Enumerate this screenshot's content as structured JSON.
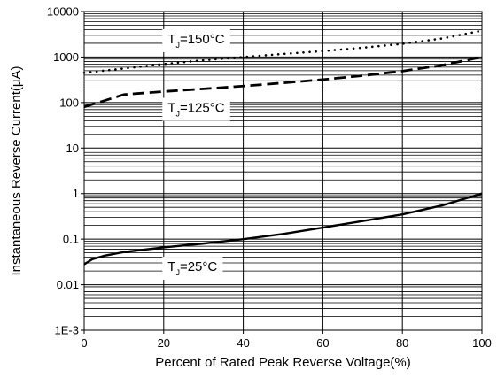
{
  "chart_data": {
    "type": "line",
    "xlabel": "Percent of Rated Peak Reverse Voltage(%)",
    "ylabel": "Instantaneous Reverse Current(μA)",
    "xlim": [
      0,
      100
    ],
    "ylim": [
      0.001,
      10000
    ],
    "yscale": "log",
    "x_ticks": [
      0,
      20,
      40,
      60,
      80,
      100
    ],
    "x_tick_labels": [
      "0",
      "20",
      "40",
      "60",
      "80",
      "100"
    ],
    "y_ticks": [
      0.001,
      0.01,
      0.1,
      1,
      10,
      100,
      1000,
      10000
    ],
    "y_tick_labels": [
      "1E-3",
      "0.01",
      "0.1",
      "1",
      "10",
      "100",
      "1000",
      "10000"
    ],
    "grid": true,
    "series": [
      {
        "name": "T_J=150°C",
        "style": "dotted",
        "color": "#000000",
        "x": [
          0,
          10,
          20,
          30,
          40,
          50,
          60,
          70,
          80,
          90,
          100
        ],
        "y": [
          450,
          560,
          700,
          850,
          1000,
          1170,
          1350,
          1600,
          1950,
          2550,
          3800
        ]
      },
      {
        "name": "T_J=125°C",
        "style": "dashed",
        "color": "#000000",
        "x": [
          0,
          10,
          20,
          30,
          40,
          50,
          60,
          70,
          80,
          90,
          100
        ],
        "y": [
          80,
          150,
          175,
          200,
          230,
          270,
          320,
          390,
          490,
          660,
          1000
        ]
      },
      {
        "name": "T_J=25°C",
        "style": "solid",
        "color": "#000000",
        "x": [
          0,
          2,
          5,
          10,
          20,
          30,
          40,
          50,
          60,
          70,
          80,
          90,
          100
        ],
        "y": [
          0.028,
          0.036,
          0.043,
          0.052,
          0.066,
          0.08,
          0.1,
          0.13,
          0.18,
          0.25,
          0.35,
          0.55,
          1.0
        ]
      }
    ],
    "annotations": [
      {
        "main": "T",
        "sub": "J",
        "rest": "=150°C",
        "x": 21,
        "y": 2000
      },
      {
        "main": "T",
        "sub": "J",
        "rest": "=125°C",
        "x": 21,
        "y": 62
      },
      {
        "main": "T",
        "sub": "J",
        "rest": "=25°C",
        "x": 21,
        "y": 0.02
      }
    ]
  }
}
